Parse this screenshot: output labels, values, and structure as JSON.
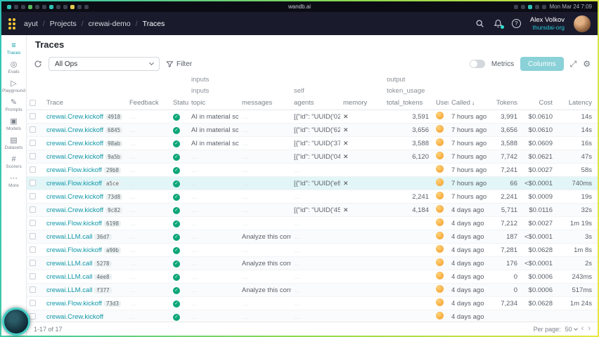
{
  "frame": {
    "os_title": "wandb.ai",
    "clock": "Mon Mar 24 7:09"
  },
  "navbar": {
    "breadcrumb": [
      "ayut",
      "Projects",
      "crewai-demo",
      "Traces"
    ],
    "user_name": "Alex Volkov",
    "user_org": "thursdai-org"
  },
  "sidebar": {
    "items": [
      {
        "label": "Traces",
        "icon": "traces-icon",
        "glyph": "≡",
        "active": true
      },
      {
        "label": "Evals",
        "icon": "evals-icon",
        "glyph": "◎",
        "active": false
      },
      {
        "label": "Playground",
        "icon": "playground-icon",
        "glyph": "▷",
        "active": false
      },
      {
        "label": "Prompts",
        "icon": "prompts-icon",
        "glyph": "✎",
        "active": false
      },
      {
        "label": "Models",
        "icon": "models-icon",
        "glyph": "▣",
        "active": false
      },
      {
        "label": "Datasets",
        "icon": "datasets-icon",
        "glyph": "▤",
        "active": false
      },
      {
        "label": "Scorers",
        "icon": "scorers-icon",
        "glyph": "#",
        "active": false
      },
      {
        "label": "More",
        "icon": "more-icon",
        "glyph": "⋯",
        "active": false
      }
    ]
  },
  "page": {
    "title": "Traces"
  },
  "toolbar": {
    "ops_selector": "All Ops",
    "filter_label": "Filter",
    "metrics_label": "Metrics",
    "columns_label": "Columns"
  },
  "table": {
    "groups": {
      "row1": [
        "inputs",
        "output"
      ],
      "row2": [
        "inputs",
        "self",
        "token_usage"
      ]
    },
    "columns": [
      "Trace",
      "Feedback",
      "Status",
      "topic",
      "messages",
      "agents",
      "memory",
      "total_tokens",
      "User",
      "Called",
      "Tokens",
      "Cost",
      "Latency"
    ],
    "rows": [
      {
        "name": "crewai.Crew.kickoff",
        "id": "4918",
        "topic": "AI in material science",
        "messages": "",
        "agents": "[{\"id\": \"UUID('02f7d…",
        "memory": true,
        "total_tokens": "3,591",
        "called": "7 hours ago",
        "tokens": "3,991",
        "cost": "$0.0610",
        "latency": "14s",
        "selected": false
      },
      {
        "name": "crewai.Crew.kickoff",
        "id": "6845",
        "topic": "AI in material science",
        "messages": "",
        "agents": "[{\"id\": \"UUID('6229…",
        "memory": true,
        "total_tokens": "3,656",
        "called": "7 hours ago",
        "tokens": "3,656",
        "cost": "$0.0610",
        "latency": "14s",
        "selected": false
      },
      {
        "name": "crewai.Crew.kickoff",
        "id": "98ab",
        "topic": "AI in material science",
        "messages": "",
        "agents": "[{\"id\": \"UUID('370f6…",
        "memory": true,
        "total_tokens": "3,588",
        "called": "7 hours ago",
        "tokens": "3,588",
        "cost": "$0.0609",
        "latency": "16s",
        "selected": false
      },
      {
        "name": "crewai.Crew.kickoff",
        "id": "9a5b",
        "topic": "",
        "messages": "",
        "agents": "[{\"id\": \"UUID('043b…",
        "memory": true,
        "total_tokens": "6,120",
        "called": "7 hours ago",
        "tokens": "7,742",
        "cost": "$0.0621",
        "latency": "47s",
        "selected": false
      },
      {
        "name": "crewai.Flow.kickoff",
        "id": "29b8",
        "topic": "",
        "messages": "",
        "agents": "",
        "memory": false,
        "total_tokens": "",
        "called": "7 hours ago",
        "tokens": "7,241",
        "cost": "$0.0027",
        "latency": "58s",
        "selected": false
      },
      {
        "name": "crewai.Flow.kickoff",
        "id": "a5ce",
        "topic": "",
        "messages": "",
        "agents": "[{\"id\": \"UUID('e8f56…",
        "memory": true,
        "total_tokens": "",
        "called": "7 hours ago",
        "tokens": "66",
        "cost": "<$0.0001",
        "latency": "740ms",
        "selected": true
      },
      {
        "name": "crewai.Crew.kickoff",
        "id": "73d8",
        "topic": "",
        "messages": "",
        "agents": "",
        "memory": false,
        "total_tokens": "2,241",
        "called": "7 hours ago",
        "tokens": "2,241",
        "cost": "$0.0009",
        "latency": "19s",
        "selected": false
      },
      {
        "name": "crewai.Crew.kickoff",
        "id": "9c82",
        "topic": "",
        "messages": "",
        "agents": "[{\"id\": \"UUID('4505…",
        "memory": true,
        "total_tokens": "4,184",
        "called": "4 days ago",
        "tokens": "5,711",
        "cost": "$0.0116",
        "latency": "32s",
        "selected": false
      },
      {
        "name": "crewai.Flow.kickoff",
        "id": "6198",
        "topic": "",
        "messages": "",
        "agents": "",
        "memory": false,
        "total_tokens": "",
        "called": "4 days ago",
        "tokens": "7,212",
        "cost": "$0.0027",
        "latency": "1m 19s",
        "selected": false
      },
      {
        "name": "crewai.LLM.call",
        "id": "36d7",
        "topic": "",
        "messages": "Analyze this conten…",
        "agents": "",
        "memory": false,
        "total_tokens": "",
        "called": "4 days ago",
        "tokens": "187",
        "cost": "<$0.0001",
        "latency": "3s",
        "selected": false
      },
      {
        "name": "crewai.Flow.kickoff",
        "id": "a90b",
        "topic": "",
        "messages": "",
        "agents": "",
        "memory": false,
        "total_tokens": "",
        "called": "4 days ago",
        "tokens": "7,281",
        "cost": "$0.0628",
        "latency": "1m 8s",
        "selected": false
      },
      {
        "name": "crewai.LLM.call",
        "id": "5278",
        "topic": "",
        "messages": "Analyze this conten…",
        "agents": "",
        "memory": false,
        "total_tokens": "",
        "called": "4 days ago",
        "tokens": "176",
        "cost": "<$0.0001",
        "latency": "2s",
        "selected": false
      },
      {
        "name": "crewai.LLM.call",
        "id": "4ee8",
        "topic": "",
        "messages": "",
        "agents": "",
        "memory": false,
        "total_tokens": "",
        "called": "4 days ago",
        "tokens": "0",
        "cost": "$0.0006",
        "latency": "243ms",
        "selected": false
      },
      {
        "name": "crewai.LLM.call",
        "id": "f377",
        "topic": "",
        "messages": "Analyze this conten…",
        "agents": "",
        "memory": false,
        "total_tokens": "",
        "called": "4 days ago",
        "tokens": "0",
        "cost": "$0.0006",
        "latency": "517ms",
        "selected": false
      },
      {
        "name": "crewai.Flow.kickoff",
        "id": "73d3",
        "topic": "",
        "messages": "",
        "agents": "",
        "memory": false,
        "total_tokens": "",
        "called": "4 days ago",
        "tokens": "7,234",
        "cost": "$0.0628",
        "latency": "1m 24s",
        "selected": false
      },
      {
        "name": "crewai.Crew.kickoff",
        "id": "",
        "topic": "",
        "messages": "",
        "agents": "",
        "memory": false,
        "total_tokens": "",
        "called": "4 days ago",
        "tokens": "",
        "cost": "",
        "latency": "",
        "selected": false
      }
    ]
  },
  "footer": {
    "range": "1-17 of 17",
    "per_page_label": "Per page:",
    "per_page_value": "50"
  }
}
